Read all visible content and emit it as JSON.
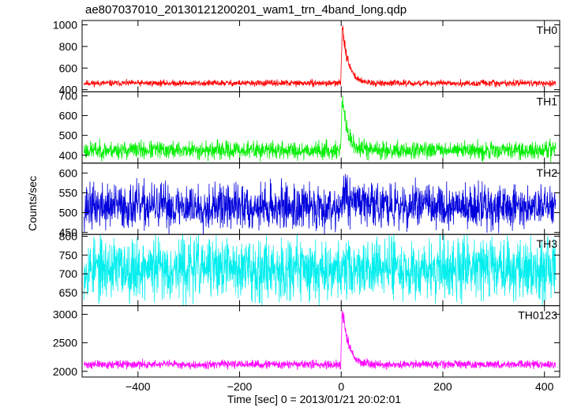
{
  "title": "ae807037010_20130121200201_wam1_trn_4band_long.qdp",
  "chart_data": {
    "type": "line",
    "title": "ae807037010_20130121200201_wam1_trn_4band_long.qdp",
    "xlabel": "Time [sec] 0 = 2013/01/21 20:02:01",
    "ylabel": "Counts/sec",
    "xlim": [
      -510,
      430
    ],
    "xticks": [
      -400,
      -200,
      0,
      200,
      400
    ],
    "grid": false,
    "panels": [
      {
        "name": "TH0",
        "color": "#ff0000",
        "ylim": [
          380,
          1040
        ],
        "yticks": [
          400,
          600,
          800,
          1000
        ],
        "baseline": 460,
        "noise": 14,
        "peak": 1000,
        "peak_time": 2,
        "decay": 12,
        "seed": 11
      },
      {
        "name": "TH1",
        "color": "#00ee00",
        "ylim": [
          360,
          720
        ],
        "yticks": [
          400,
          500,
          600,
          700
        ],
        "baseline": 425,
        "noise": 22,
        "peak": 700,
        "peak_time": 2,
        "decay": 10,
        "seed": 23
      },
      {
        "name": "TH2",
        "color": "#0000dd",
        "ylim": [
          445,
          625
        ],
        "yticks": [
          450,
          500,
          550,
          600
        ],
        "baseline": 515,
        "noise": 28,
        "peak": 545,
        "peak_time": 5,
        "decay": 40,
        "seed": 37
      },
      {
        "name": "TH3",
        "color": "#00eeee",
        "ylim": [
          615,
          805
        ],
        "yticks": [
          650,
          700,
          750,
          800
        ],
        "baseline": 715,
        "noise": 40,
        "peak": 715,
        "peak_time": 0,
        "decay": 1,
        "seed": 53
      },
      {
        "name": "TH0123",
        "color": "#ff00ff",
        "ylim": [
          1900,
          3150
        ],
        "yticks": [
          2000,
          2500,
          3000
        ],
        "baseline": 2120,
        "noise": 35,
        "peak": 3100,
        "peak_time": 2,
        "decay": 12,
        "seed": 71
      }
    ]
  }
}
